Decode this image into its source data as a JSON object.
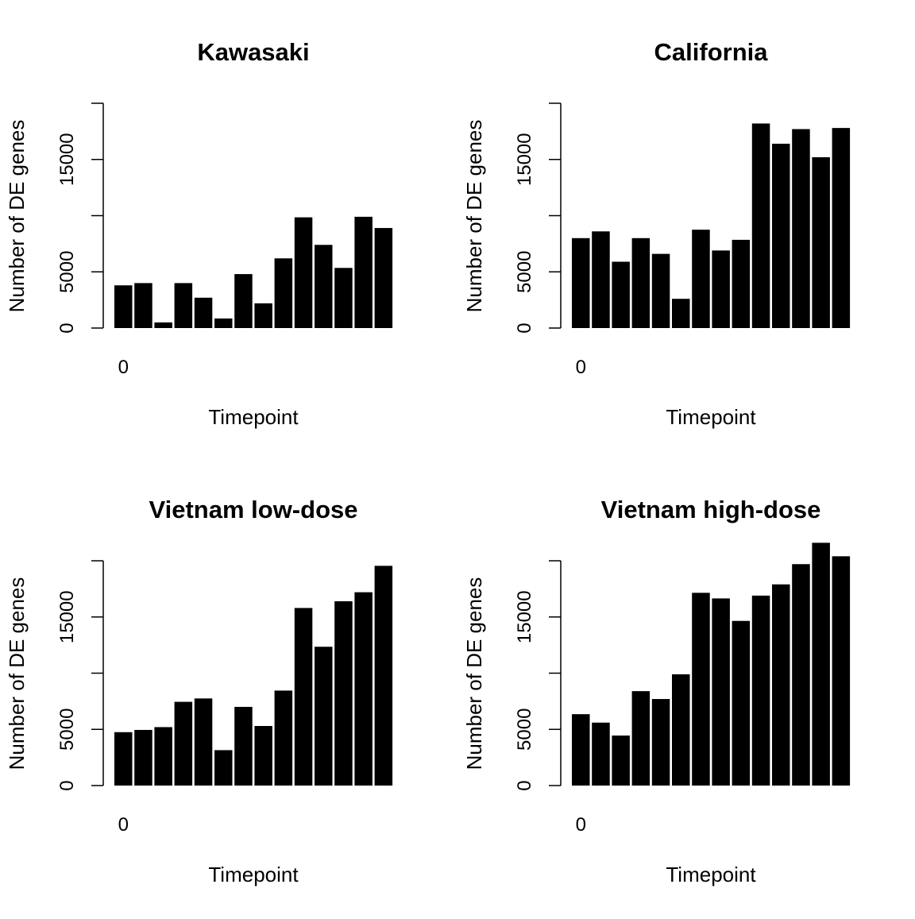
{
  "chart_data": [
    {
      "type": "bar",
      "title": "Kawasaki",
      "xlabel": "Timepoint",
      "ylabel": "Number of DE genes",
      "x_tick_labels": [
        "0"
      ],
      "y_ticks": [
        0,
        5000,
        10000,
        15000,
        20000
      ],
      "y_tick_labels": [
        "0",
        "5000",
        "",
        "15000",
        ""
      ],
      "ylim": [
        0,
        20000
      ],
      "values": [
        3800,
        4000,
        500,
        4000,
        2700,
        850,
        4800,
        2200,
        6200,
        9850,
        7400,
        5350,
        9900,
        8900
      ],
      "bar_color": "#000000"
    },
    {
      "type": "bar",
      "title": "California",
      "xlabel": "Timepoint",
      "ylabel": "Number of DE genes",
      "x_tick_labels": [
        "0"
      ],
      "y_ticks": [
        0,
        5000,
        10000,
        15000,
        20000
      ],
      "y_tick_labels": [
        "0",
        "5000",
        "",
        "15000",
        ""
      ],
      "ylim": [
        0,
        20000
      ],
      "values": [
        8000,
        8600,
        5900,
        8000,
        6600,
        2600,
        8750,
        6900,
        7850,
        18200,
        16400,
        17700,
        15200,
        17800
      ],
      "bar_color": "#000000"
    },
    {
      "type": "bar",
      "title": "Vietnam low-dose",
      "xlabel": "Timepoint",
      "ylabel": "Number of DE genes",
      "x_tick_labels": [
        "0"
      ],
      "y_ticks": [
        0,
        5000,
        10000,
        15000,
        20000
      ],
      "y_tick_labels": [
        "0",
        "5000",
        "",
        "15000",
        ""
      ],
      "ylim": [
        0,
        20000
      ],
      "values": [
        4750,
        4950,
        5200,
        7450,
        7750,
        3150,
        7000,
        5300,
        8450,
        15800,
        12350,
        16400,
        17200,
        19550
      ],
      "bar_color": "#000000"
    },
    {
      "type": "bar",
      "title": "Vietnam high-dose",
      "xlabel": "Timepoint",
      "ylabel": "Number of DE genes",
      "x_tick_labels": [
        "0"
      ],
      "y_ticks": [
        0,
        5000,
        10000,
        15000,
        20000
      ],
      "y_tick_labels": [
        "0",
        "5000",
        "",
        "15000",
        ""
      ],
      "ylim": [
        0,
        20000
      ],
      "values": [
        6350,
        5600,
        4450,
        8400,
        7700,
        9900,
        17150,
        16650,
        14650,
        16900,
        17900,
        19700,
        21600,
        20400
      ],
      "bar_color": "#000000"
    }
  ]
}
